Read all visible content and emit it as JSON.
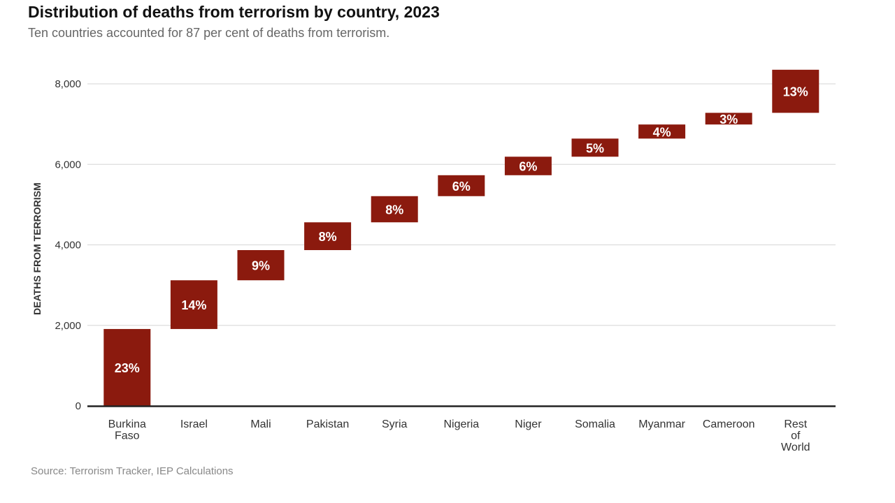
{
  "chart_data": {
    "type": "bar",
    "subtype": "waterfall",
    "title": "Distribution of deaths from terrorism by country, 2023",
    "subtitle": "Ten countries accounted for 87 per cent of deaths from terrorism.",
    "ylabel": "DEATHS FROM TERRORISM",
    "xlabel": "",
    "ylim": [
      0,
      8500
    ],
    "yticks": [
      0,
      2000,
      4000,
      6000,
      8000
    ],
    "ytick_labels": [
      "0",
      "2,000",
      "4,000",
      "6,000",
      "8,000"
    ],
    "grid": true,
    "bar_color": "#8B1A0E",
    "categories": [
      [
        "Burkina",
        "Faso"
      ],
      [
        "Israel"
      ],
      [
        "Mali"
      ],
      [
        "Pakistan"
      ],
      [
        "Syria"
      ],
      [
        "Nigeria"
      ],
      [
        "Niger"
      ],
      [
        "Somalia"
      ],
      [
        "Myanmar"
      ],
      [
        "Cameroon"
      ],
      [
        "Rest",
        "of",
        "World"
      ]
    ],
    "bars": [
      {
        "start": 0,
        "end": 1910,
        "label": "23%"
      },
      {
        "start": 1910,
        "end": 3120,
        "label": "14%"
      },
      {
        "start": 3120,
        "end": 3870,
        "label": "9%"
      },
      {
        "start": 3870,
        "end": 4560,
        "label": "8%"
      },
      {
        "start": 4560,
        "end": 5210,
        "label": "8%"
      },
      {
        "start": 5210,
        "end": 5730,
        "label": "6%"
      },
      {
        "start": 5730,
        "end": 6190,
        "label": "6%"
      },
      {
        "start": 6190,
        "end": 6640,
        "label": "5%"
      },
      {
        "start": 6640,
        "end": 6990,
        "label": "4%"
      },
      {
        "start": 6990,
        "end": 7280,
        "label": "3%"
      },
      {
        "start": 7280,
        "end": 8350,
        "label": "13%"
      }
    ],
    "source": "Source: Terrorism Tracker, IEP Calculations"
  }
}
